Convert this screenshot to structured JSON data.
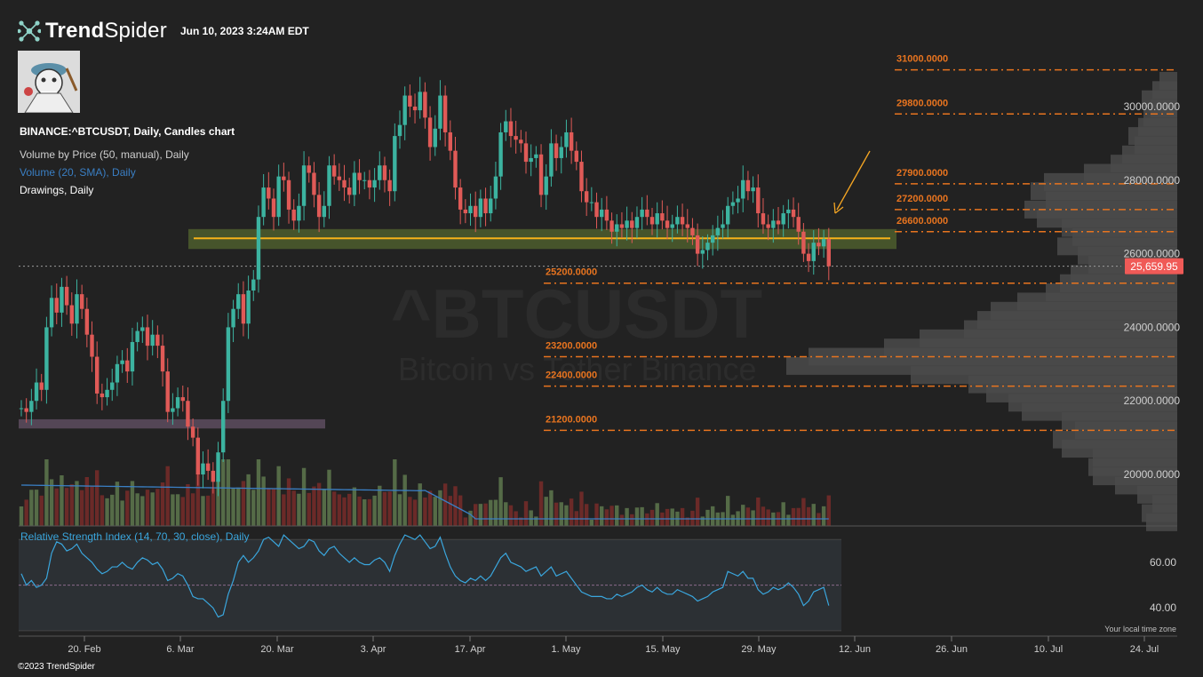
{
  "header": {
    "brand_bold": "Trend",
    "brand_light": "Spider",
    "timestamp": "Jun 10, 2023 3:24AM EDT",
    "copyright": "©2023 TrendSpider"
  },
  "legend": {
    "symbol_line": "BINANCE:^BTCUSDT, Daily, Candles chart",
    "vbp": "Volume by Price (50, manual), Daily",
    "volume_sma": "Volume (20, SMA), Daily",
    "drawings": "Drawings, Daily",
    "rsi": "Relative Strength Index (14, 70, 30, close), Daily"
  },
  "watermark": {
    "symbol": "^BTCUSDT",
    "name": "Bitcoin vs Tether Binance"
  },
  "timezone_note": "Your local time zone",
  "colors": {
    "background": "#222222",
    "bull": "#3cb3a0",
    "bear": "#e05a57",
    "level": "#e8741f",
    "support_zone": "#4a5a2c",
    "support_line": "#f5b21a",
    "lower_zone": "#5a4a5c",
    "rsi_line": "#3aa6dd",
    "vbp": "#4a4a4a",
    "price_tag": "#f05a57",
    "arrow": "#f5a623"
  },
  "chart_data": {
    "type": "candlestick",
    "symbol": "BINANCE:^BTCUSDT",
    "interval": "Daily",
    "last_price": "25,659.95",
    "y_ticks": [
      "30000.0000",
      "28000.0000",
      "26000.0000",
      "24000.0000",
      "22000.0000",
      "20000.0000"
    ],
    "y_tick_values": [
      30000,
      28000,
      26000,
      24000,
      22000,
      20000
    ],
    "ylim": [
      18600,
      31400
    ],
    "x_ticks": [
      "20. Feb",
      "6. Mar",
      "20. Mar",
      "3. Apr",
      "17. Apr",
      "1. May",
      "15. May",
      "29. May",
      "12. Jun",
      "26. Jun",
      "10. Jul",
      "24. Jul"
    ],
    "horizontal_levels": [
      {
        "label": "31000.0000",
        "value": 31000
      },
      {
        "label": "29800.0000",
        "value": 29800
      },
      {
        "label": "27900.0000",
        "value": 27900
      },
      {
        "label": "27200.0000",
        "value": 27200
      },
      {
        "label": "26600.0000",
        "value": 26600
      },
      {
        "label": "25200.0000",
        "value": 25200
      },
      {
        "label": "23200.0000",
        "value": 23200
      },
      {
        "label": "22400.0000",
        "value": 22400
      },
      {
        "label": "21200.0000",
        "value": 21200
      }
    ],
    "support_zone": [
      26250,
      26550
    ],
    "support_line": 26420,
    "lower_zone": [
      21250,
      21500
    ],
    "candles_close": [
      21800,
      21700,
      22000,
      22500,
      22300,
      24000,
      24800,
      24400,
      25100,
      24600,
      24100,
      24900,
      24500,
      23800,
      23200,
      22200,
      22100,
      22300,
      22500,
      23000,
      23100,
      22800,
      23600,
      23900,
      24000,
      23500,
      23800,
      23500,
      22800,
      21700,
      21800,
      22100,
      22000,
      21300,
      21000,
      20000,
      20300,
      20100,
      19800,
      20600,
      22000,
      24000,
      24500,
      24900,
      24100,
      25000,
      25300,
      27000,
      27800,
      27500,
      27000,
      28100,
      28000,
      27200,
      26900,
      27300,
      28400,
      28200,
      27600,
      27000,
      27300,
      28400,
      28100,
      28000,
      27800,
      27600,
      28200,
      28000,
      28000,
      27800,
      28000,
      28400,
      28000,
      27700,
      29200,
      29500,
      30300,
      30000,
      29900,
      30400,
      29700,
      28900,
      29400,
      30300,
      29300,
      28800,
      27800,
      27200,
      27100,
      27300,
      27000,
      27500,
      27100,
      27500,
      28100,
      29300,
      29600,
      29200,
      29100,
      29000,
      28500,
      28600,
      28700,
      27600,
      28100,
      29000,
      28600,
      28900,
      29300,
      28800,
      28500,
      27700,
      27400,
      27400,
      27000,
      27200,
      26900,
      26600,
      26800,
      26700,
      26900,
      26700,
      27000,
      27200,
      27000,
      26800,
      27100,
      26900,
      26700,
      26800,
      27000,
      26800,
      26700,
      26500,
      26000,
      26100,
      26300,
      26500,
      26700,
      26800,
      27300,
      27400,
      27500,
      28000,
      27700,
      27800,
      27100,
      26800,
      26700,
      26900,
      26800,
      27100,
      27200,
      27000,
      26600,
      26000,
      25800,
      26300,
      26200,
      26400,
      25659.95
    ],
    "volume_sma": {
      "name": "Volume (20, SMA)"
    },
    "rsi": {
      "name": "Relative Strength Index (14, 70, 30, close)",
      "y_ticks": [
        "60.00",
        "40.00"
      ],
      "y_tick_values": [
        60,
        40
      ],
      "bands": [
        70,
        30
      ],
      "mid": 50,
      "ylim": [
        28,
        74
      ],
      "values": [
        55,
        50,
        52,
        49,
        50,
        53,
        64,
        69,
        68,
        65,
        66,
        68,
        64,
        62,
        60,
        57,
        55,
        56,
        58,
        58,
        60,
        58,
        57,
        60,
        62,
        61,
        59,
        60,
        57,
        52,
        53,
        55,
        54,
        50,
        45,
        44,
        44,
        42,
        40,
        36,
        37,
        46,
        52,
        60,
        63,
        60,
        62,
        65,
        70,
        71,
        69,
        67,
        72,
        70,
        68,
        66,
        67,
        70,
        69,
        65,
        63,
        66,
        67,
        64,
        62,
        60,
        62,
        60,
        59,
        59,
        61,
        62,
        60,
        56,
        63,
        68,
        72,
        71,
        70,
        72,
        69,
        66,
        67,
        71,
        64,
        58,
        54,
        52,
        51,
        53,
        52,
        54,
        52,
        54,
        58,
        62,
        64,
        60,
        59,
        58,
        56,
        57,
        58,
        54,
        56,
        58,
        54,
        55,
        56,
        53,
        50,
        47,
        46,
        45,
        45,
        45,
        44,
        44,
        46,
        45,
        46,
        47,
        49,
        50,
        48,
        47,
        49,
        47,
        46,
        46,
        48,
        47,
        46,
        45,
        43,
        44,
        45,
        47,
        48,
        49,
        56,
        55,
        54,
        56,
        53,
        53,
        48,
        46,
        47,
        49,
        48,
        49,
        51,
        49,
        46,
        41,
        43,
        47,
        48,
        49,
        41
      ]
    },
    "vbp_profile": [
      {
        "price": 30700,
        "width": 20
      },
      {
        "price": 30450,
        "width": 28
      },
      {
        "price": 30200,
        "width": 40
      },
      {
        "price": 29950,
        "width": 30
      },
      {
        "price": 29700,
        "width": 38
      },
      {
        "price": 29450,
        "width": 44
      },
      {
        "price": 29200,
        "width": 55
      },
      {
        "price": 28950,
        "width": 48
      },
      {
        "price": 28700,
        "width": 62
      },
      {
        "price": 28450,
        "width": 75
      },
      {
        "price": 28200,
        "width": 105
      },
      {
        "price": 27950,
        "width": 150
      },
      {
        "price": 27700,
        "width": 165
      },
      {
        "price": 27450,
        "width": 148
      },
      {
        "price": 27200,
        "width": 172
      },
      {
        "price": 26950,
        "width": 158
      },
      {
        "price": 26700,
        "width": 130
      },
      {
        "price": 26450,
        "width": 118
      },
      {
        "price": 26200,
        "width": 135
      },
      {
        "price": 25950,
        "width": 112
      },
      {
        "price": 25700,
        "width": 100
      },
      {
        "price": 25450,
        "width": 120
      },
      {
        "price": 25200,
        "width": 132
      },
      {
        "price": 24950,
        "width": 148
      },
      {
        "price": 24700,
        "width": 180
      },
      {
        "price": 24450,
        "width": 210
      },
      {
        "price": 24200,
        "width": 225
      },
      {
        "price": 23950,
        "width": 240
      },
      {
        "price": 23700,
        "width": 290
      },
      {
        "price": 23450,
        "width": 330
      },
      {
        "price": 23200,
        "width": 415
      },
      {
        "price": 22950,
        "width": 440
      },
      {
        "price": 22700,
        "width": 300
      },
      {
        "price": 22450,
        "width": 235
      },
      {
        "price": 22200,
        "width": 215
      },
      {
        "price": 21950,
        "width": 190
      },
      {
        "price": 21700,
        "width": 175
      },
      {
        "price": 21450,
        "width": 130
      },
      {
        "price": 21200,
        "width": 115
      },
      {
        "price": 20950,
        "width": 140
      },
      {
        "price": 20700,
        "width": 130
      },
      {
        "price": 20450,
        "width": 95
      },
      {
        "price": 20200,
        "width": 100
      },
      {
        "price": 19950,
        "width": 95
      },
      {
        "price": 19700,
        "width": 70
      },
      {
        "price": 19450,
        "width": 45
      },
      {
        "price": 19200,
        "width": 28
      },
      {
        "price": 18950,
        "width": 40
      },
      {
        "price": 18700,
        "width": 35
      }
    ]
  }
}
